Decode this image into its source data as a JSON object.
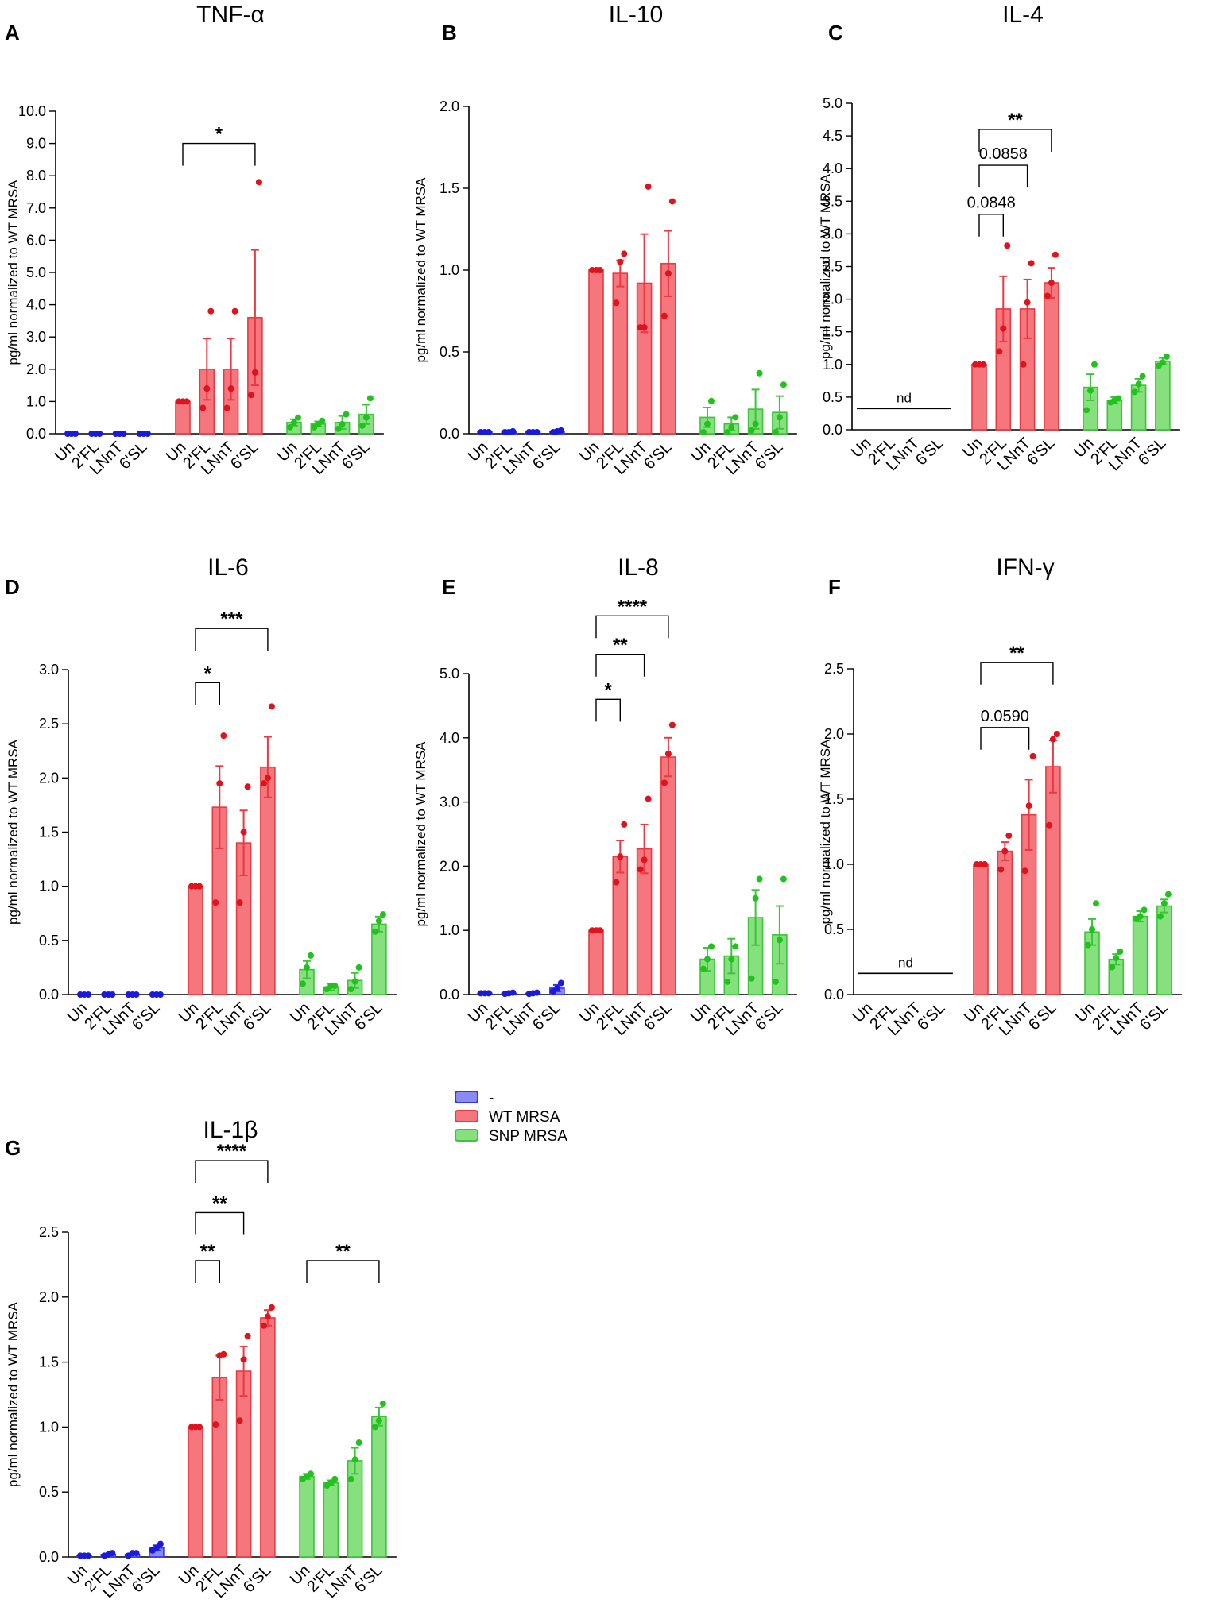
{
  "legend": [
    {
      "label": "-",
      "group": "neg"
    },
    {
      "label": "WT MRSA",
      "group": "wt"
    },
    {
      "label": "SNP MRSA",
      "group": "snp"
    }
  ],
  "colors": {
    "neg": {
      "fill": "#8a8af5",
      "stroke": "#3535ea",
      "dot": "#1a1adb"
    },
    "wt": {
      "fill": "#f5767c",
      "stroke": "#e83a42",
      "dot": "#e0121c"
    },
    "snp": {
      "fill": "#86e07e",
      "stroke": "#3dc43a",
      "dot": "#22c21e"
    }
  },
  "chart_data": [
    {
      "type": "bar",
      "letter": "A",
      "title": "TNF-α",
      "ylabel": "pg/ml normalized to WT MRSA",
      "ylim": [
        0,
        10
      ],
      "yticks": [
        "0.0",
        "1.0",
        "2.0",
        "3.0",
        "4.0",
        "5.0",
        "6.0",
        "7.0",
        "8.0",
        "9.0",
        "10.0"
      ],
      "categories": [
        "Un",
        "2'FL",
        "LNnT",
        "6'SL"
      ],
      "series": [
        {
          "name": "-",
          "group": "neg",
          "values": [
            0,
            0,
            0,
            0
          ],
          "errors": [
            0,
            0,
            0,
            0
          ],
          "points": [
            [
              0,
              0,
              0
            ],
            [
              0,
              0,
              0
            ],
            [
              0,
              0,
              0
            ],
            [
              0,
              0,
              0
            ]
          ]
        },
        {
          "name": "WT MRSA",
          "group": "wt",
          "values": [
            1.0,
            2.0,
            2.0,
            3.6
          ],
          "errors": [
            0,
            0.95,
            0.95,
            2.1
          ],
          "points": [
            [
              1,
              1,
              1
            ],
            [
              0.8,
              1.4,
              3.8
            ],
            [
              0.8,
              1.4,
              3.8
            ],
            [
              1.2,
              1.9,
              7.8
            ]
          ]
        },
        {
          "name": "SNP MRSA",
          "group": "snp",
          "values": [
            0.35,
            0.3,
            0.35,
            0.6
          ],
          "errors": [
            0.1,
            0.08,
            0.2,
            0.3
          ],
          "points": [
            [
              0.2,
              0.35,
              0.5
            ],
            [
              0.2,
              0.3,
              0.4
            ],
            [
              0.15,
              0.3,
              0.6
            ],
            [
              0.25,
              0.5,
              1.1
            ]
          ]
        }
      ],
      "annotations": [
        {
          "label": "*",
          "from": "WT MRSA Un",
          "to": "WT MRSA 6'SL",
          "level": 9.0
        }
      ],
      "nd": false
    },
    {
      "type": "bar",
      "letter": "B",
      "title": "IL-10",
      "ylabel": "pg/ml normalized to WT MRSA",
      "ylim": [
        0,
        2
      ],
      "yticks": [
        "0.0",
        "0.5",
        "1.0",
        "1.5",
        "2.0"
      ],
      "categories": [
        "Un",
        "2'FL",
        "LNnT",
        "6'SL"
      ],
      "series": [
        {
          "name": "-",
          "group": "neg",
          "values": [
            0.01,
            0.01,
            0.01,
            0.015
          ],
          "errors": [
            0,
            0,
            0,
            0
          ],
          "points": [
            [
              0.01,
              0.01,
              0.01
            ],
            [
              0.01,
              0.01,
              0.015
            ],
            [
              0.01,
              0.01,
              0.01
            ],
            [
              0.01,
              0.015,
              0.02
            ]
          ]
        },
        {
          "name": "WT MRSA",
          "group": "wt",
          "values": [
            1.0,
            0.98,
            0.92,
            1.04
          ],
          "errors": [
            0,
            0.08,
            0.3,
            0.2
          ],
          "points": [
            [
              1,
              1,
              1
            ],
            [
              0.8,
              1.05,
              1.1
            ],
            [
              0.65,
              0.65,
              1.51
            ],
            [
              0.72,
              0.98,
              1.42
            ]
          ]
        },
        {
          "name": "SNP MRSA",
          "group": "snp",
          "values": [
            0.1,
            0.06,
            0.15,
            0.13
          ],
          "errors": [
            0.06,
            0.04,
            0.12,
            0.1
          ],
          "points": [
            [
              0.01,
              0.06,
              0.2
            ],
            [
              0.01,
              0.04,
              0.1
            ],
            [
              0.02,
              0.06,
              0.37
            ],
            [
              0.01,
              0.1,
              0.3
            ]
          ]
        }
      ],
      "annotations": [],
      "nd": false
    },
    {
      "type": "bar",
      "letter": "C",
      "title": "IL-4",
      "ylabel": "pg/ml normalized to WT MRSA",
      "ylim": [
        0,
        5
      ],
      "yticks": [
        "0.0",
        "0.5",
        "1.0",
        "1.5",
        "2.0",
        "2.5",
        "3.0",
        "3.5",
        "4.0",
        "4.5",
        "5.0"
      ],
      "categories": [
        "Un",
        "2'FL",
        "LNnT",
        "6'SL"
      ],
      "series": [
        {
          "name": "-",
          "group": "neg",
          "values": [
            0,
            0,
            0,
            0
          ],
          "errors": [
            0,
            0,
            0,
            0
          ],
          "points": []
        },
        {
          "name": "WT MRSA",
          "group": "wt",
          "values": [
            1.0,
            1.85,
            1.85,
            2.25
          ],
          "errors": [
            0,
            0.5,
            0.45,
            0.23
          ],
          "points": [
            [
              1,
              1,
              1
            ],
            [
              1.2,
              1.55,
              2.82
            ],
            [
              1.0,
              1.95,
              2.55
            ],
            [
              2.05,
              2.25,
              2.68
            ]
          ]
        },
        {
          "name": "SNP MRSA",
          "group": "snp",
          "values": [
            0.65,
            0.45,
            0.68,
            1.05
          ],
          "errors": [
            0.2,
            0.05,
            0.1,
            0.05
          ],
          "points": [
            [
              0.3,
              0.6,
              1.0
            ],
            [
              0.42,
              0.45,
              0.48
            ],
            [
              0.58,
              0.7,
              0.82
            ],
            [
              0.98,
              1.03,
              1.12
            ]
          ]
        }
      ],
      "annotations": [
        {
          "label": "0.0848",
          "from": "WT MRSA Un",
          "to": "WT MRSA 2'FL",
          "level": 3.3
        },
        {
          "label": "0.0858",
          "from": "WT MRSA Un",
          "to": "WT MRSA LNnT",
          "level": 4.05
        },
        {
          "label": "**",
          "from": "WT MRSA Un",
          "to": "WT MRSA 6'SL",
          "level": 4.6
        }
      ],
      "nd": true,
      "nd_label": "nd"
    },
    {
      "type": "bar",
      "letter": "D",
      "title": "IL-6",
      "ylabel": "pg/ml normalized to WT MRSA",
      "ylim": [
        0,
        3
      ],
      "yticks": [
        "0.0",
        "0.5",
        "1.0",
        "1.5",
        "2.0",
        "2.5",
        "3.0"
      ],
      "categories": [
        "Un",
        "2'FL",
        "LNnT",
        "6'SL"
      ],
      "series": [
        {
          "name": "-",
          "group": "neg",
          "values": [
            0,
            0,
            0,
            0
          ],
          "errors": [
            0,
            0,
            0,
            0
          ],
          "points": [
            [
              0,
              0,
              0
            ],
            [
              0,
              0,
              0
            ],
            [
              0,
              0,
              0
            ],
            [
              0,
              0,
              0
            ]
          ]
        },
        {
          "name": "WT MRSA",
          "group": "wt",
          "values": [
            1.0,
            1.73,
            1.4,
            2.1
          ],
          "errors": [
            0,
            0.38,
            0.3,
            0.28
          ],
          "points": [
            [
              1,
              1,
              1
            ],
            [
              0.85,
              1.95,
              2.39
            ],
            [
              0.85,
              1.5,
              1.92
            ],
            [
              1.95,
              2.0,
              2.66
            ]
          ]
        },
        {
          "name": "SNP MRSA",
          "group": "snp",
          "values": [
            0.23,
            0.07,
            0.13,
            0.65
          ],
          "errors": [
            0.08,
            0.03,
            0.07,
            0.07
          ],
          "points": [
            [
              0.1,
              0.25,
              0.36
            ],
            [
              0.05,
              0.08,
              0.08
            ],
            [
              0.05,
              0.12,
              0.25
            ],
            [
              0.58,
              0.68,
              0.74
            ]
          ]
        }
      ],
      "annotations": [
        {
          "label": "*",
          "from": "WT MRSA Un",
          "to": "WT MRSA 2'FL",
          "level": 2.88
        },
        {
          "label": "***",
          "from": "WT MRSA Un",
          "to": "WT MRSA 6'SL",
          "level": 3.38
        }
      ],
      "nd": false
    },
    {
      "type": "bar",
      "letter": "E",
      "title": "IL-8",
      "ylabel": "pg/ml normalized to WT MRSA",
      "ylim": [
        0,
        5
      ],
      "yticks": [
        "0.0",
        "1.0",
        "2.0",
        "3.0",
        "4.0",
        "5.0"
      ],
      "categories": [
        "Un",
        "2'FL",
        "LNnT",
        "6'SL"
      ],
      "series": [
        {
          "name": "-",
          "group": "neg",
          "values": [
            0.02,
            0.02,
            0.02,
            0.1
          ],
          "errors": [
            0,
            0,
            0,
            0.05
          ],
          "points": [
            [
              0.02,
              0.02,
              0.02
            ],
            [
              0.01,
              0.02,
              0.03
            ],
            [
              0.01,
              0.02,
              0.03
            ],
            [
              0.05,
              0.1,
              0.18
            ]
          ]
        },
        {
          "name": "WT MRSA",
          "group": "wt",
          "values": [
            1.0,
            2.15,
            2.27,
            3.7
          ],
          "errors": [
            0,
            0.25,
            0.38,
            0.3
          ],
          "points": [
            [
              1,
              1,
              1
            ],
            [
              1.75,
              2.15,
              2.65
            ],
            [
              1.95,
              2.1,
              3.05
            ],
            [
              3.3,
              3.75,
              4.2
            ]
          ]
        },
        {
          "name": "SNP MRSA",
          "group": "snp",
          "values": [
            0.55,
            0.6,
            1.2,
            0.93
          ],
          "errors": [
            0.18,
            0.27,
            0.43,
            0.45
          ],
          "points": [
            [
              0.4,
              0.55,
              0.75
            ],
            [
              0.2,
              0.55,
              0.75
            ],
            [
              0.25,
              1.5,
              1.8
            ],
            [
              0.2,
              0.85,
              1.8
            ]
          ]
        }
      ],
      "annotations": [
        {
          "label": "*",
          "from": "WT MRSA Un",
          "to": "WT MRSA 2'FL",
          "level": 4.6
        },
        {
          "label": "**",
          "from": "WT MRSA Un",
          "to": "WT MRSA LNnT",
          "level": 5.3
        },
        {
          "label": "****",
          "from": "WT MRSA Un",
          "to": "WT MRSA 6'SL",
          "level": 5.9
        }
      ],
      "nd": false
    },
    {
      "type": "bar",
      "letter": "F",
      "title": "IFN-γ",
      "ylabel": "pg/ml normalized to WT MRSA",
      "ylim": [
        0,
        2.5
      ],
      "yticks": [
        "0.0",
        "0.5",
        "1.0",
        "1.5",
        "2.0",
        "2.5"
      ],
      "categories": [
        "Un",
        "2'FL",
        "LNnT",
        "6'SL"
      ],
      "series": [
        {
          "name": "-",
          "group": "neg",
          "values": [
            0,
            0,
            0,
            0
          ],
          "errors": [
            0,
            0,
            0,
            0
          ],
          "points": []
        },
        {
          "name": "WT MRSA",
          "group": "wt",
          "values": [
            1.0,
            1.1,
            1.38,
            1.75
          ],
          "errors": [
            0,
            0.07,
            0.27,
            0.2
          ],
          "points": [
            [
              1,
              1,
              1
            ],
            [
              0.96,
              1.1,
              1.22
            ],
            [
              0.95,
              1.45,
              1.83
            ],
            [
              1.3,
              1.96,
              2.0
            ]
          ]
        },
        {
          "name": "SNP MRSA",
          "group": "snp",
          "values": [
            0.48,
            0.27,
            0.6,
            0.68
          ],
          "errors": [
            0.1,
            0.04,
            0.04,
            0.05
          ],
          "points": [
            [
              0.38,
              0.5,
              0.7
            ],
            [
              0.21,
              0.28,
              0.33
            ],
            [
              0.58,
              0.6,
              0.65
            ],
            [
              0.6,
              0.7,
              0.77
            ]
          ]
        }
      ],
      "annotations": [
        {
          "label": "0.0590",
          "from": "WT MRSA Un",
          "to": "WT MRSA LNnT",
          "level": 2.05
        },
        {
          "label": "**",
          "from": "WT MRSA Un",
          "to": "WT MRSA 6'SL",
          "level": 2.55
        }
      ],
      "nd": true,
      "nd_label": "nd"
    },
    {
      "type": "bar",
      "letter": "G",
      "title": "IL-1β",
      "ylabel": "pg/ml normalized to WT MRSA",
      "ylim": [
        0,
        2.5
      ],
      "yticks": [
        "0.0",
        "0.5",
        "1.0",
        "1.5",
        "2.0",
        "2.5"
      ],
      "categories": [
        "Un",
        "2'FL",
        "LNnT",
        "6'SL"
      ],
      "series": [
        {
          "name": "-",
          "group": "neg",
          "values": [
            0.01,
            0.02,
            0.02,
            0.07
          ],
          "errors": [
            0,
            0,
            0,
            0.02
          ],
          "points": [
            [
              0.01,
              0.01,
              0.01
            ],
            [
              0.01,
              0.02,
              0.03
            ],
            [
              0.01,
              0.03,
              0.03
            ],
            [
              0.05,
              0.07,
              0.1
            ]
          ]
        },
        {
          "name": "WT MRSA",
          "group": "wt",
          "values": [
            1.0,
            1.38,
            1.43,
            1.84
          ],
          "errors": [
            0,
            0.17,
            0.19,
            0.06
          ],
          "points": [
            [
              1,
              1,
              1
            ],
            [
              1.02,
              1.55,
              1.56
            ],
            [
              1.05,
              1.52,
              1.7
            ],
            [
              1.78,
              1.85,
              1.92
            ]
          ]
        },
        {
          "name": "SNP MRSA",
          "group": "snp",
          "values": [
            0.62,
            0.57,
            0.74,
            1.08
          ],
          "errors": [
            0.02,
            0.02,
            0.1,
            0.07
          ],
          "points": [
            [
              0.6,
              0.62,
              0.64
            ],
            [
              0.55,
              0.57,
              0.6
            ],
            [
              0.6,
              0.75,
              0.88
            ],
            [
              1.0,
              1.05,
              1.18
            ]
          ]
        }
      ],
      "annotations": [
        {
          "label": "**",
          "from": "WT MRSA Un",
          "to": "WT MRSA 2'FL",
          "level": 2.28
        },
        {
          "label": "**",
          "from": "WT MRSA Un",
          "to": "WT MRSA LNnT",
          "level": 2.65
        },
        {
          "label": "****",
          "from": "WT MRSA Un",
          "to": "WT MRSA 6'SL",
          "level": 3.05
        },
        {
          "label": "**",
          "from": "SNP MRSA Un",
          "to": "SNP MRSA 6'SL",
          "level": 2.28
        }
      ],
      "nd": false
    }
  ]
}
